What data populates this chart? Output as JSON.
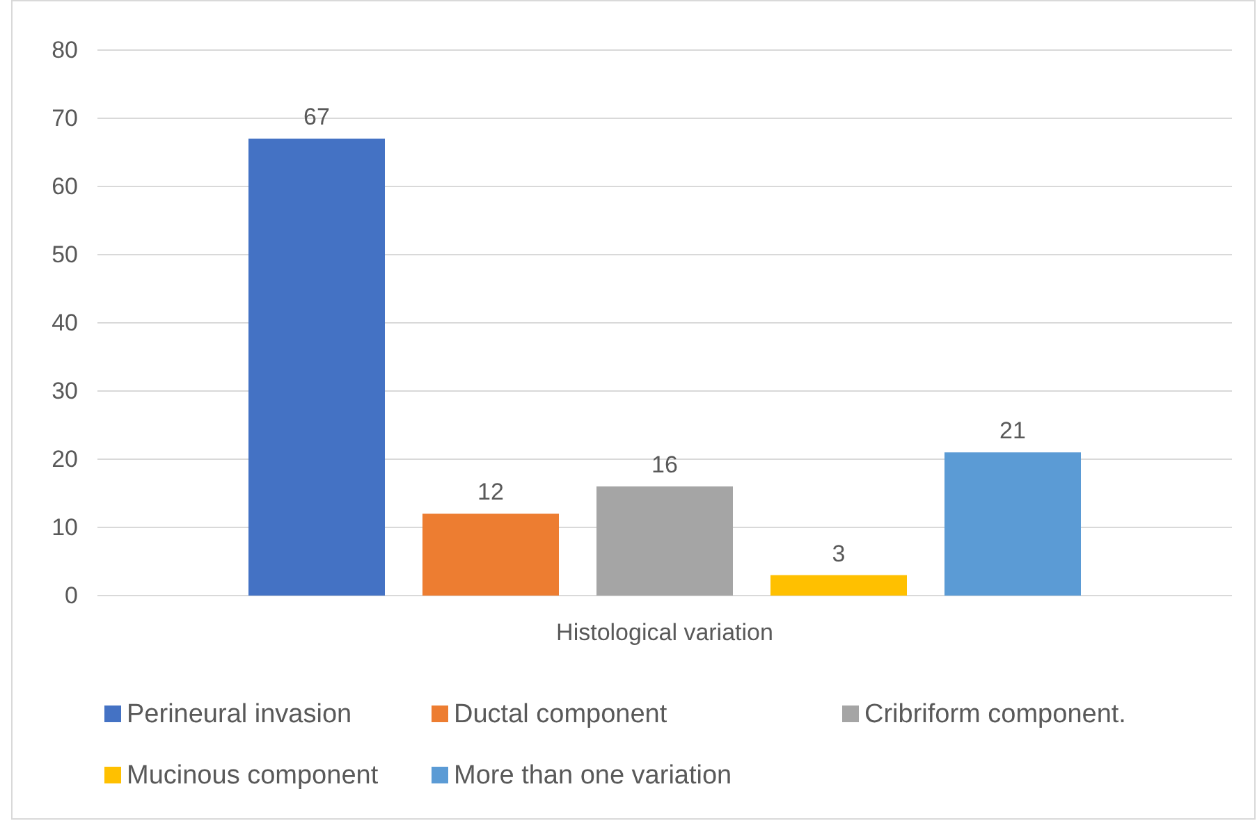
{
  "chart_data": {
    "type": "bar",
    "categories": [
      "Histological variation"
    ],
    "series": [
      {
        "name": "Perineural invasion",
        "color": "#4472c4",
        "values": [
          67
        ]
      },
      {
        "name": "Ductal component",
        "color": "#ed7d31",
        "values": [
          12
        ]
      },
      {
        "name": "Cribriform component.",
        "color": "#a5a5a5",
        "values": [
          16
        ]
      },
      {
        "name": "Mucinous component",
        "color": "#ffc000",
        "values": [
          3
        ]
      },
      {
        "name": "More than one variation",
        "color": "#5b9bd5",
        "values": [
          21
        ]
      }
    ],
    "ylim": [
      0,
      80
    ],
    "yticks": [
      0,
      10,
      20,
      30,
      40,
      50,
      60,
      70,
      80
    ],
    "grid": "y",
    "data_labels": true,
    "legend": "bottom"
  }
}
